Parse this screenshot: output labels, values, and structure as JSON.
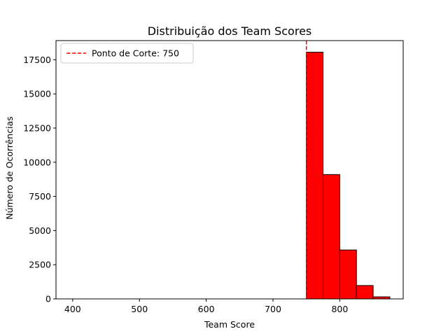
{
  "chart_data": {
    "type": "bar",
    "title": "Distribuição dos Team Scores",
    "xlabel": "Team Score",
    "ylabel": "Número de Ocorrências",
    "xlim": [
      375,
      895
    ],
    "ylim": [
      0,
      18900
    ],
    "x_ticks": [
      400,
      500,
      600,
      700,
      800
    ],
    "x_tick_labels": [
      "400",
      "500",
      "600",
      "700",
      "800"
    ],
    "y_ticks": [
      0,
      2500,
      5000,
      7500,
      10000,
      12500,
      15000,
      17500
    ],
    "y_tick_labels": [
      "0",
      "2500",
      "5000",
      "7500",
      "10000",
      "12500",
      "15000",
      "17500"
    ],
    "grid": false,
    "bins": [
      {
        "start": 400,
        "end": 425,
        "count": 0
      },
      {
        "start": 425,
        "end": 450,
        "count": 0
      },
      {
        "start": 450,
        "end": 475,
        "count": 0
      },
      {
        "start": 475,
        "end": 500,
        "count": 0
      },
      {
        "start": 500,
        "end": 525,
        "count": 0
      },
      {
        "start": 525,
        "end": 550,
        "count": 0
      },
      {
        "start": 550,
        "end": 575,
        "count": 0
      },
      {
        "start": 575,
        "end": 600,
        "count": 0
      },
      {
        "start": 600,
        "end": 625,
        "count": 0
      },
      {
        "start": 625,
        "end": 650,
        "count": 0
      },
      {
        "start": 650,
        "end": 675,
        "count": 0
      },
      {
        "start": 675,
        "end": 700,
        "count": 0
      },
      {
        "start": 700,
        "end": 725,
        "count": 0
      },
      {
        "start": 725,
        "end": 750,
        "count": 0
      },
      {
        "start": 750,
        "end": 775,
        "count": 18050
      },
      {
        "start": 775,
        "end": 800,
        "count": 9100
      },
      {
        "start": 800,
        "end": 825,
        "count": 3580
      },
      {
        "start": 825,
        "end": 850,
        "count": 980
      },
      {
        "start": 850,
        "end": 875,
        "count": 150
      }
    ],
    "bar_color": "#ff0000",
    "bar_edge_color": "#000000",
    "cutoff": {
      "value": 750,
      "label": "Ponto de Corte: 750",
      "color": "#ff0000",
      "style": "dashed"
    },
    "legend_position": "upper-left"
  }
}
